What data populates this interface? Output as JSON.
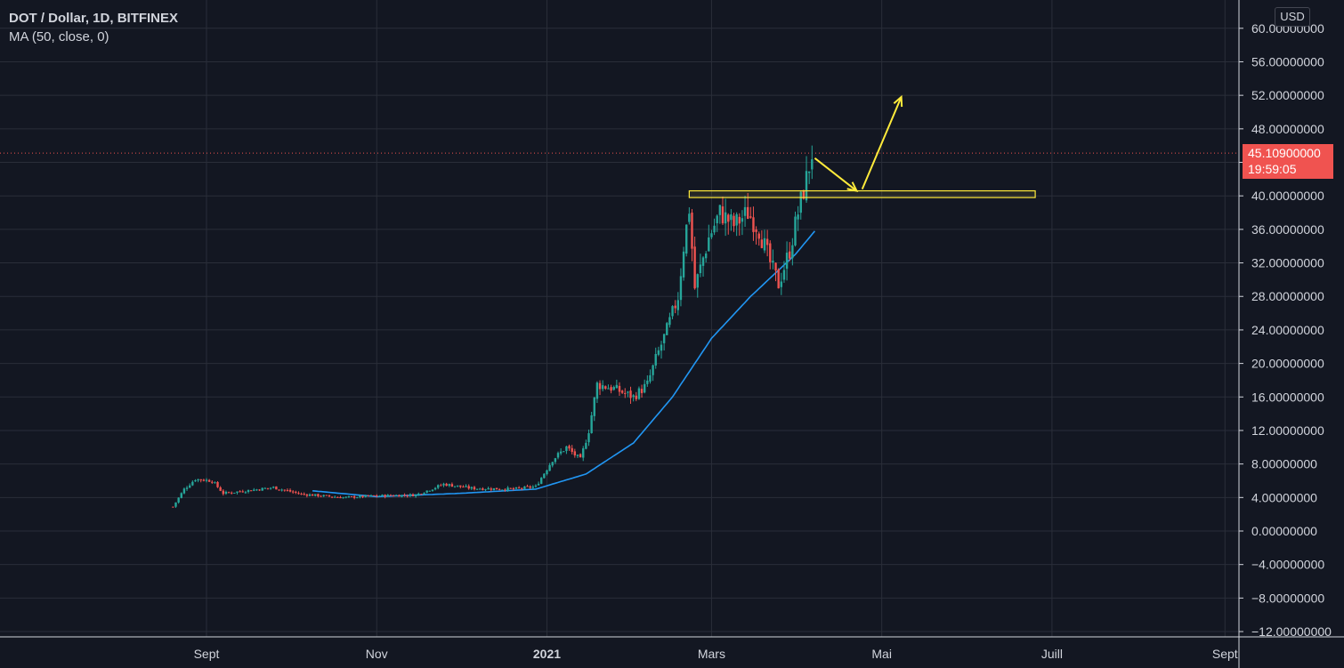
{
  "legend": {
    "title": "DOT / Dollar, 1D, BITFINEX",
    "indicator": "MA (50, close, 0)"
  },
  "currency_button": "USD",
  "last_price": {
    "value": "45.10900000",
    "countdown": "19:59:05"
  },
  "colors": {
    "background": "#131722",
    "grid": "#2a2e39",
    "up": "#26a69a",
    "down": "#ef5350",
    "ma": "#2196f3",
    "annotation": "#ffeb3b",
    "price_tag": "#f05350"
  },
  "chart_data": {
    "type": "candlestick",
    "title": "DOT / Dollar, 1D, BITFINEX",
    "ylim": [
      -12,
      62
    ],
    "y_ticks": [
      "60.00000000",
      "56.00000000",
      "52.00000000",
      "48.00000000",
      "44.00000000",
      "40.00000000",
      "36.00000000",
      "32.00000000",
      "28.00000000",
      "24.00000000",
      "20.00000000",
      "16.00000000",
      "12.00000000",
      "8.00000000",
      "4.00000000",
      "0.00000000",
      "−4.00000000",
      "−8.00000000",
      "−12.00000000"
    ],
    "x_ticks": [
      "Sept",
      "Nov",
      "2021",
      "Mars",
      "Mai",
      "Juill",
      "Sept"
    ],
    "x_range": [
      "2020-08-01",
      "2021-09-10"
    ],
    "x_tick_dates": [
      "2020-09-01",
      "2020-11-01",
      "2021-01-01",
      "2021-03-01",
      "2021-05-01",
      "2021-07-01",
      "2021-09-01"
    ],
    "price_anchors": [
      [
        "2020-08-20",
        2.9
      ],
      [
        "2020-08-24",
        5.0
      ],
      [
        "2020-08-28",
        6.2
      ],
      [
        "2020-09-03",
        6.0
      ],
      [
        "2020-09-07",
        4.5
      ],
      [
        "2020-09-15",
        4.8
      ],
      [
        "2020-09-25",
        5.2
      ],
      [
        "2020-10-05",
        4.4
      ],
      [
        "2020-10-20",
        4.0
      ],
      [
        "2020-11-01",
        4.2
      ],
      [
        "2020-11-15",
        4.3
      ],
      [
        "2020-11-25",
        5.6
      ],
      [
        "2020-12-05",
        5.1
      ],
      [
        "2020-12-20",
        5.0
      ],
      [
        "2020-12-28",
        5.3
      ],
      [
        "2021-01-03",
        8.5
      ],
      [
        "2021-01-08",
        10.0
      ],
      [
        "2021-01-13",
        8.5
      ],
      [
        "2021-01-16",
        12.0
      ],
      [
        "2021-01-19",
        17.5
      ],
      [
        "2021-01-25",
        17.0
      ],
      [
        "2021-02-01",
        16.0
      ],
      [
        "2021-02-06",
        17.5
      ],
      [
        "2021-02-09",
        20.5
      ],
      [
        "2021-02-13",
        24.0
      ],
      [
        "2021-02-17",
        28.0
      ],
      [
        "2021-02-19",
        34.0
      ],
      [
        "2021-02-21",
        38.5
      ],
      [
        "2021-02-23",
        29.0
      ],
      [
        "2021-02-28",
        35.0
      ],
      [
        "2021-03-04",
        38.0
      ],
      [
        "2021-03-09",
        36.5
      ],
      [
        "2021-03-14",
        38.0
      ],
      [
        "2021-03-18",
        36.0
      ],
      [
        "2021-03-22",
        32.0
      ],
      [
        "2021-03-25",
        29.5
      ],
      [
        "2021-03-29",
        33.5
      ],
      [
        "2021-04-01",
        38.0
      ],
      [
        "2021-04-04",
        42.0
      ],
      [
        "2021-04-06",
        45.1
      ]
    ],
    "ma_anchors": [
      [
        "2020-10-09",
        4.8
      ],
      [
        "2020-11-01",
        4.1
      ],
      [
        "2020-12-01",
        4.5
      ],
      [
        "2020-12-28",
        5.0
      ],
      [
        "2021-01-15",
        6.8
      ],
      [
        "2021-02-01",
        10.5
      ],
      [
        "2021-02-15",
        16.0
      ],
      [
        "2021-03-01",
        23.0
      ],
      [
        "2021-03-15",
        28.0
      ],
      [
        "2021-03-31",
        33.0
      ],
      [
        "2021-04-07",
        35.8
      ]
    ],
    "resistance_zone": {
      "from": "2021-02-21",
      "to": "2021-06-25",
      "low": 39.8,
      "high": 40.6
    },
    "arrows": [
      {
        "from": [
          "2021-04-07",
          44.5
        ],
        "to": [
          "2021-04-22",
          40.6
        ]
      },
      {
        "from": [
          "2021-04-24",
          40.8
        ],
        "to": [
          "2021-05-08",
          51.8
        ]
      }
    ],
    "last_value": 45.109
  }
}
